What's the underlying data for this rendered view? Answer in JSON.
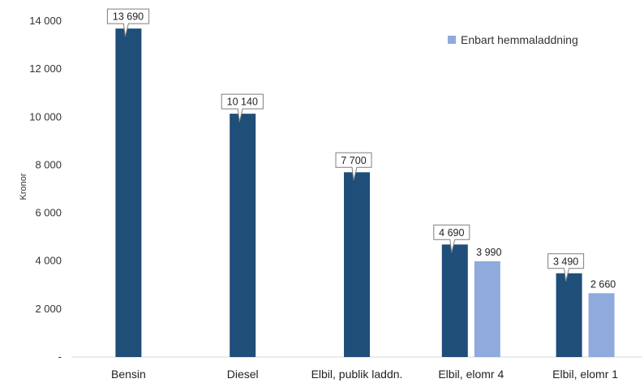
{
  "chart_data": {
    "type": "bar",
    "title": "",
    "xlabel": "",
    "ylabel": "Kronor",
    "ylim": [
      0,
      14000
    ],
    "y_ticks": [
      {
        "value": 0,
        "label": "-"
      },
      {
        "value": 2000,
        "label": "2 000"
      },
      {
        "value": 4000,
        "label": "4 000"
      },
      {
        "value": 6000,
        "label": "6 000"
      },
      {
        "value": 8000,
        "label": "8 000"
      },
      {
        "value": 10000,
        "label": "10 000"
      },
      {
        "value": 12000,
        "label": "12 000"
      },
      {
        "value": 14000,
        "label": "14 000"
      }
    ],
    "grid": false,
    "legend_position": "top-right",
    "categories": [
      "Bensin",
      "Diesel",
      "Elbil, publik laddn.",
      "Elbil, elomr 4",
      "Elbil, elomr 1"
    ],
    "series": [
      {
        "name": "",
        "color": "#1f4e79",
        "label_style": "callout",
        "values": [
          13690,
          10140,
          7700,
          4690,
          3490
        ],
        "labels": [
          "13 690",
          "10 140",
          "7 700",
          "4 690",
          "3 490"
        ]
      },
      {
        "name": "Enbart hemmaladdning",
        "color": "#8faadc",
        "label_style": "plain",
        "values": [
          null,
          null,
          null,
          3990,
          2660
        ],
        "labels": [
          "",
          "",
          "",
          "3 990",
          "2 660"
        ]
      }
    ]
  }
}
